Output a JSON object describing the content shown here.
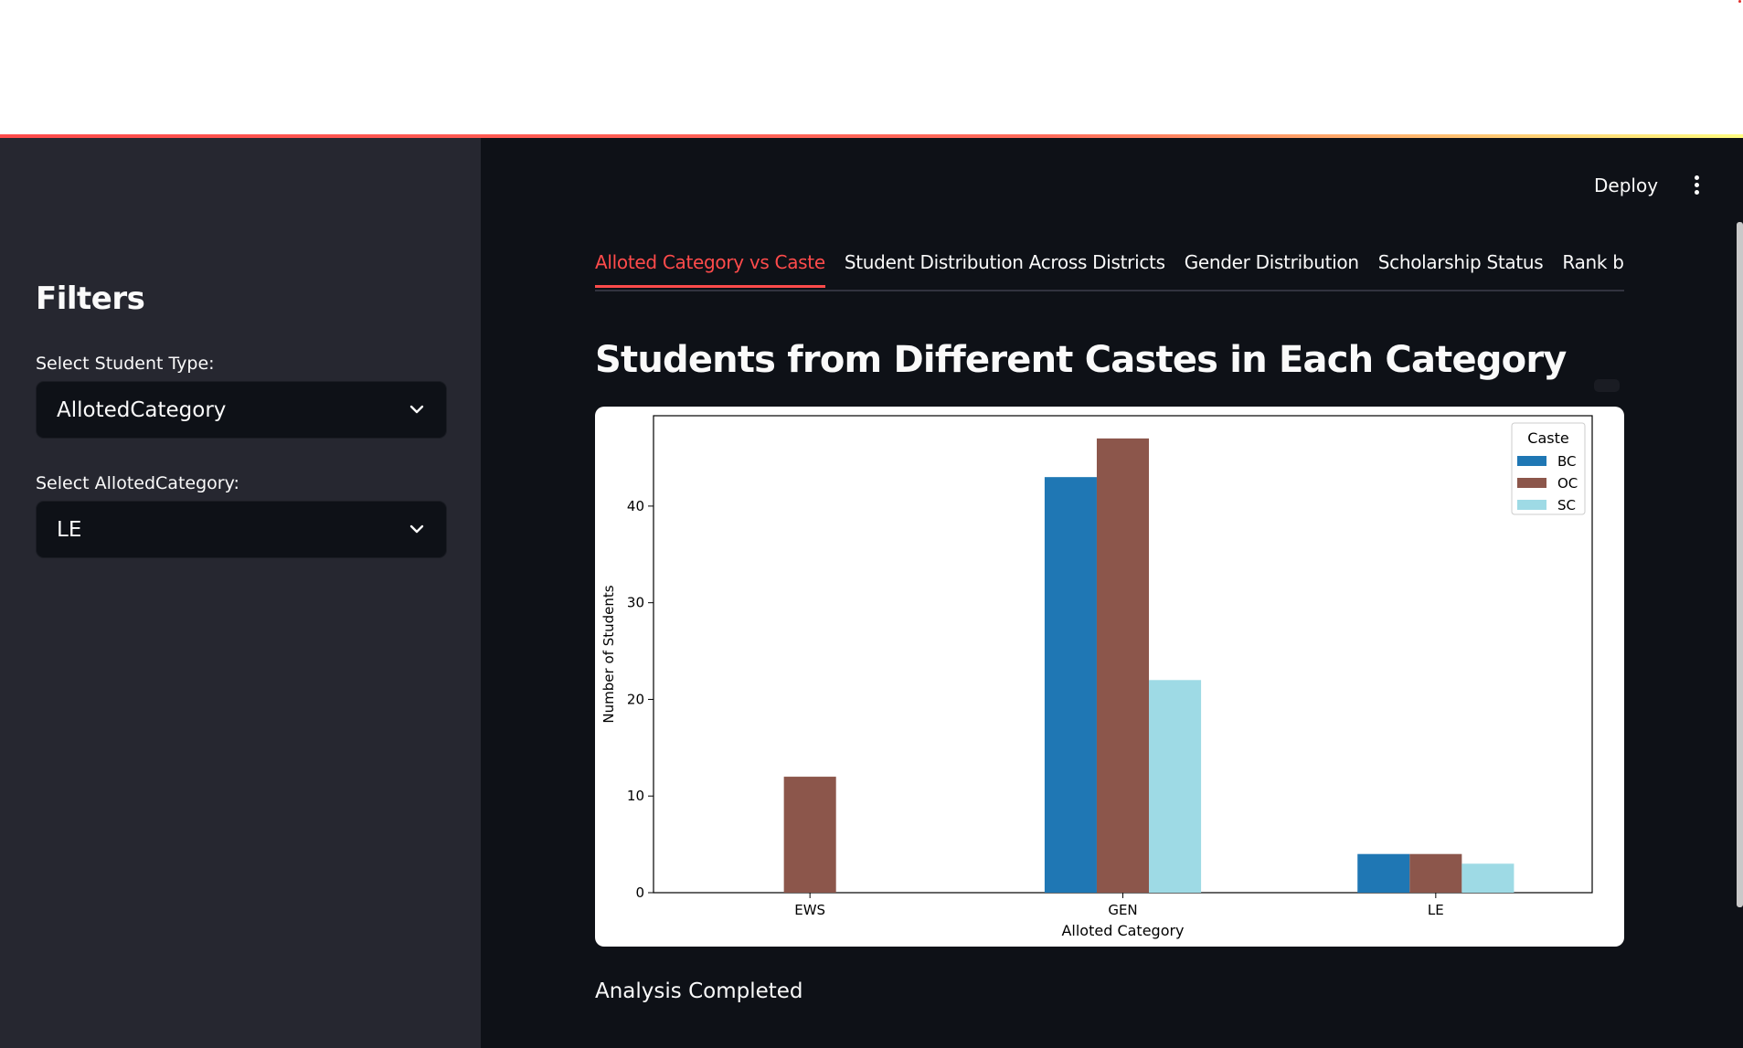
{
  "sidebar": {
    "title": "Filters",
    "student_type_label": "Select Student Type:",
    "student_type_value": "AllotedCategory",
    "category_label": "Select AllotedCategory:",
    "category_value": "LE"
  },
  "header": {
    "deploy_label": "Deploy",
    "menu_icon": "kebab-menu-icon"
  },
  "tabs": [
    {
      "label": "Alloted Category vs Caste",
      "active": true
    },
    {
      "label": "Student Distribution Across Districts",
      "active": false
    },
    {
      "label": "Gender Distribution",
      "active": false
    },
    {
      "label": "Scholarship Status",
      "active": false
    },
    {
      "label": "Rank by Caste",
      "active": false
    }
  ],
  "main": {
    "title": "Students from Different Castes in Each Category",
    "status": "Analysis Completed"
  },
  "colors": {
    "accent": "#ff4b4b",
    "BC": "#1f77b4",
    "OC": "#8c564b",
    "SC": "#9edae5"
  },
  "chart_data": {
    "type": "bar",
    "categories": [
      "EWS",
      "GEN",
      "LE"
    ],
    "series": [
      {
        "name": "BC",
        "values": [
          0,
          43,
          4
        ]
      },
      {
        "name": "OC",
        "values": [
          12,
          47,
          4
        ]
      },
      {
        "name": "SC",
        "values": [
          0,
          22,
          3
        ]
      }
    ],
    "xlabel": "Alloted Category",
    "ylabel": "Number of Students",
    "ylim": [
      0,
      49.35
    ],
    "yticks": [
      0,
      10,
      20,
      30,
      40
    ],
    "legend_title": "Caste",
    "legend_position": "top-right",
    "grid": false
  }
}
